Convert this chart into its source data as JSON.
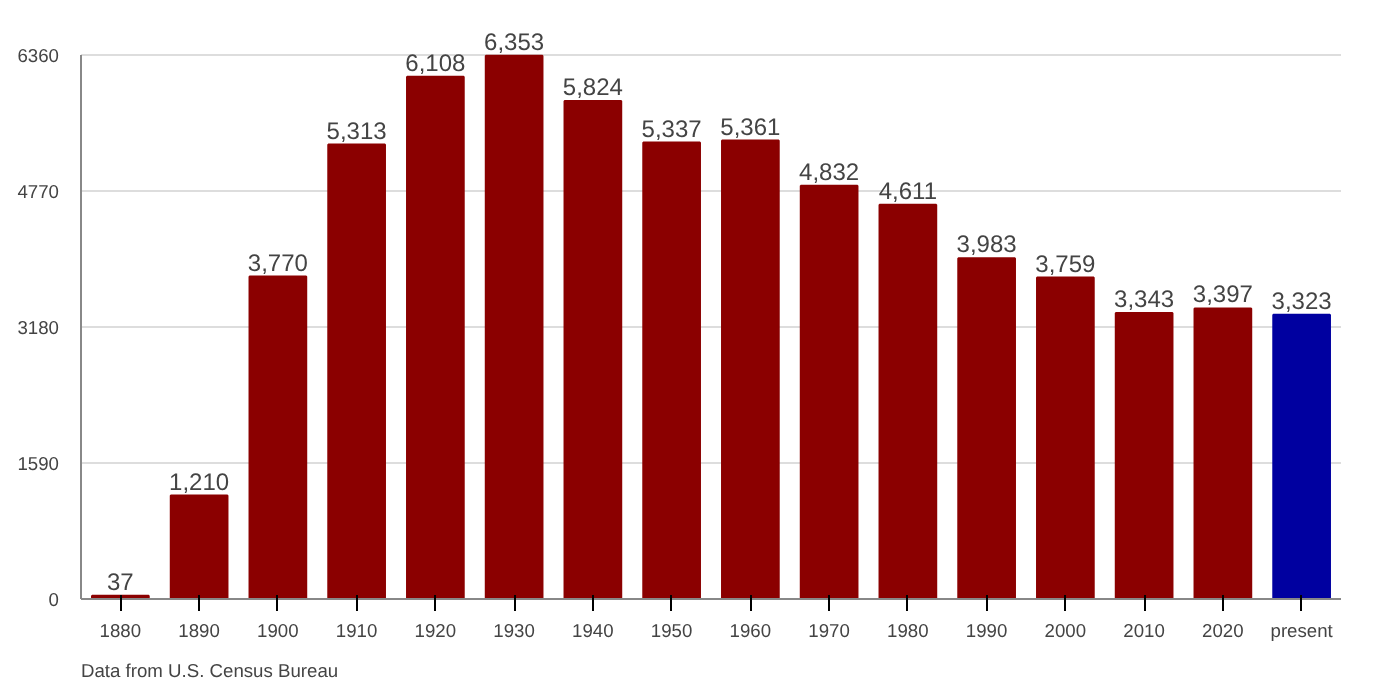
{
  "chart_data": {
    "type": "bar",
    "categories": [
      "1880",
      "1890",
      "1900",
      "1910",
      "1920",
      "1930",
      "1940",
      "1950",
      "1960",
      "1970",
      "1980",
      "1990",
      "2000",
      "2010",
      "2020",
      "present"
    ],
    "values": [
      37,
      1210,
      3770,
      5313,
      6108,
      6353,
      5824,
      5337,
      5361,
      4832,
      4611,
      3983,
      3759,
      3343,
      3397,
      3323
    ],
    "value_labels": [
      "37",
      "1,210",
      "3,770",
      "5,313",
      "6,108",
      "6,353",
      "5,824",
      "5,337",
      "5,361",
      "4,832",
      "4,611",
      "3,983",
      "3,759",
      "3,343",
      "3,397",
      "3,323"
    ],
    "colors": [
      "#8b0000",
      "#8b0000",
      "#8b0000",
      "#8b0000",
      "#8b0000",
      "#8b0000",
      "#8b0000",
      "#8b0000",
      "#8b0000",
      "#8b0000",
      "#8b0000",
      "#8b0000",
      "#8b0000",
      "#8b0000",
      "#8b0000",
      "#0000a0"
    ],
    "ylim": [
      0,
      6360
    ],
    "yticks": [
      0,
      1590,
      3180,
      4770,
      6360
    ],
    "grid": "y",
    "annotations": [
      "Data from U.S. Census Bureau"
    ]
  }
}
